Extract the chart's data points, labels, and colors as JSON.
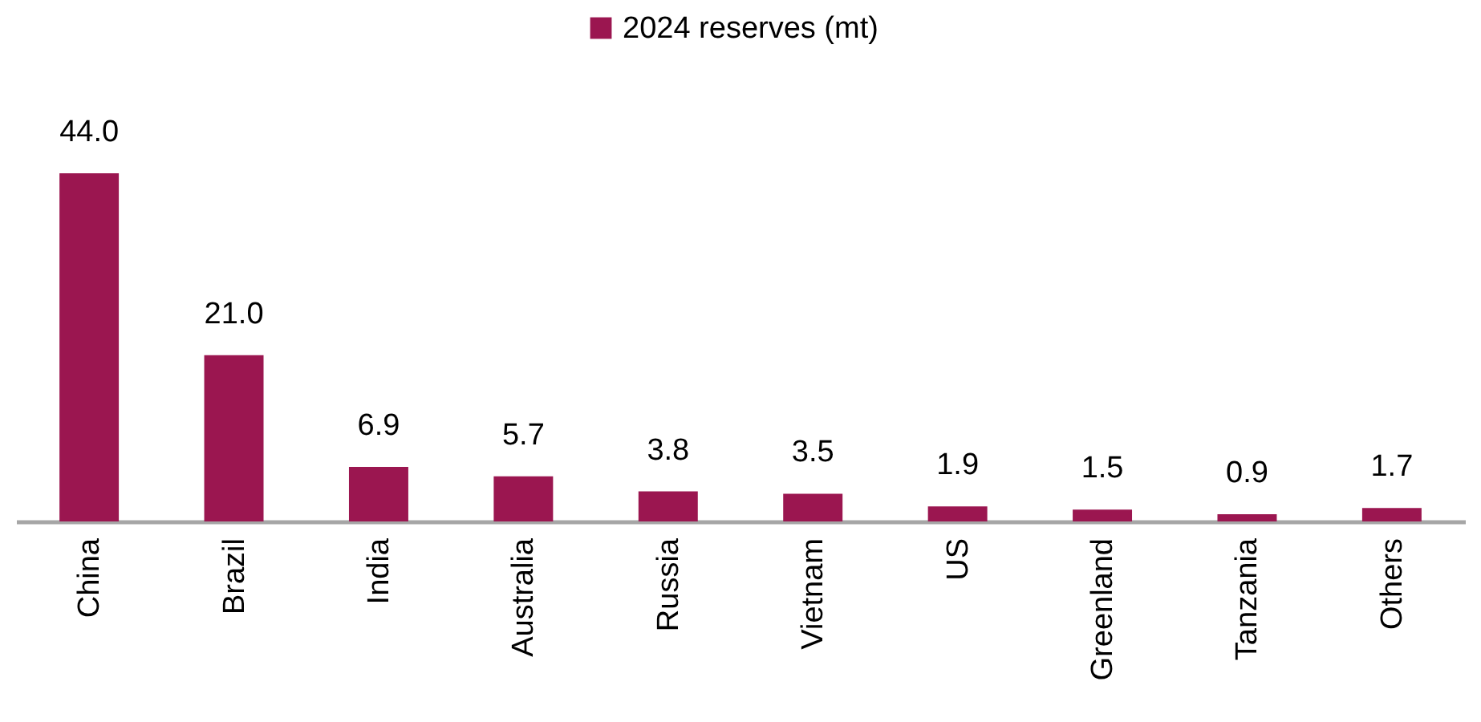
{
  "chart_data": {
    "type": "bar",
    "categories": [
      "China",
      "Brazil",
      "India",
      "Australia",
      "Russia",
      "Vietnam",
      "US",
      "Greenland",
      "Tanzania",
      "Others"
    ],
    "series": [
      {
        "name": "2024 reserves (mt)",
        "color": "#9b1650",
        "values": [
          44.0,
          21.0,
          6.9,
          5.7,
          3.8,
          3.5,
          1.9,
          1.5,
          0.9,
          1.7
        ],
        "value_labels": [
          "44.0",
          "21.0",
          "6.9",
          "5.7",
          "3.8",
          "3.5",
          "1.9",
          "1.5",
          "0.9",
          "1.7"
        ]
      }
    ],
    "legend": "top"
  }
}
